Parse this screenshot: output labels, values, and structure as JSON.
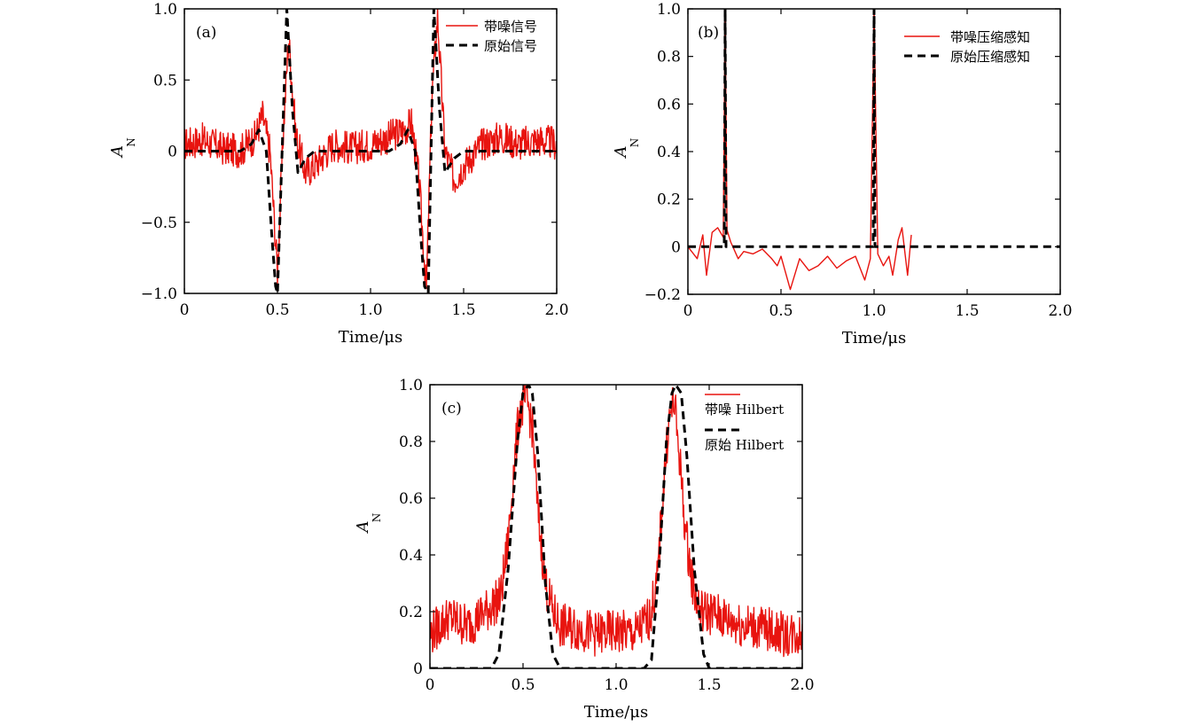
{
  "chart_data": [
    {
      "type": "line",
      "panel_label": "(a)",
      "xlabel": "Time/μs",
      "ylabel": "A",
      "ylabel_sub": "N",
      "xlim": [
        0,
        2.0
      ],
      "ylim": [
        -1.0,
        1.0
      ],
      "xticks": [
        0,
        0.5,
        1.0,
        1.5,
        2.0
      ],
      "xtick_labels": [
        "0",
        "0.5",
        "1.0",
        "1.5",
        "2.0"
      ],
      "yticks": [
        -1.0,
        -0.5,
        0,
        0.5,
        1.0
      ],
      "ytick_labels": [
        "−1.0",
        "−0.5",
        "0",
        "0.5",
        "1.0"
      ],
      "legend_position": "top-right",
      "series": [
        {
          "name": "带噪信号",
          "color": "#e8140f",
          "style": "solid",
          "x": [
            0,
            0.1,
            0.2,
            0.3,
            0.38,
            0.42,
            0.46,
            0.5,
            0.53,
            0.56,
            0.6,
            0.65,
            0.7,
            0.8,
            0.9,
            1.0,
            1.1,
            1.18,
            1.22,
            1.26,
            1.3,
            1.33,
            1.36,
            1.4,
            1.45,
            1.5,
            1.6,
            1.7,
            1.8,
            1.9,
            2.0
          ],
          "y": [
            0.05,
            0.08,
            0.02,
            0.0,
            0.1,
            0.25,
            0.0,
            -0.85,
            0.1,
            0.8,
            0.1,
            -0.15,
            -0.1,
            0.05,
            0.02,
            0.05,
            0.1,
            0.15,
            0.2,
            -0.2,
            -0.97,
            0.4,
            0.95,
            0.0,
            -0.2,
            -0.1,
            0.05,
            0.1,
            0.05,
            0.08,
            0.05
          ],
          "noise_amplitude": 0.12
        },
        {
          "name": "原始信号",
          "color": "#000000",
          "style": "dashed",
          "x": [
            0,
            0.1,
            0.2,
            0.3,
            0.36,
            0.4,
            0.44,
            0.47,
            0.49,
            0.5,
            0.52,
            0.55,
            0.58,
            0.61,
            0.65,
            0.7,
            0.8,
            0.9,
            1.0,
            1.1,
            1.16,
            1.2,
            1.24,
            1.27,
            1.29,
            1.31,
            1.34,
            1.37,
            1.4,
            1.45,
            1.5,
            1.6,
            1.7,
            1.8,
            1.9,
            2.0
          ],
          "y": [
            0,
            0,
            0,
            0,
            0.05,
            0.15,
            0.0,
            -0.6,
            -0.95,
            -1.0,
            -0.2,
            1.0,
            0.3,
            -0.15,
            -0.05,
            0,
            0,
            0,
            0,
            0,
            0.05,
            0.15,
            0.0,
            -0.6,
            -0.95,
            -1.0,
            1.0,
            0.3,
            -0.15,
            -0.05,
            0,
            0,
            0,
            0,
            0,
            0
          ]
        }
      ]
    },
    {
      "type": "line",
      "panel_label": "(b)",
      "xlabel": "Time/μs",
      "ylabel": "A",
      "ylabel_sub": "N",
      "xlim": [
        0,
        2.0
      ],
      "ylim": [
        -0.2,
        1.0
      ],
      "xticks": [
        0,
        0.5,
        1.0,
        1.5,
        2.0
      ],
      "xtick_labels": [
        "0",
        "0.5",
        "1.0",
        "1.5",
        "2.0"
      ],
      "yticks": [
        -0.2,
        0,
        0.2,
        0.4,
        0.6,
        0.8,
        1.0
      ],
      "ytick_labels": [
        "−0.2",
        "0",
        "0.2",
        "0.4",
        "0.6",
        "0.8",
        "1.0"
      ],
      "legend_position": "top-right",
      "series": [
        {
          "name": "带噪压缩感知",
          "color": "#e8140f",
          "style": "solid",
          "x": [
            0,
            0.02,
            0.05,
            0.08,
            0.1,
            0.13,
            0.16,
            0.19,
            0.2,
            0.21,
            0.23,
            0.27,
            0.3,
            0.35,
            0.4,
            0.45,
            0.48,
            0.5,
            0.55,
            0.6,
            0.65,
            0.7,
            0.75,
            0.8,
            0.85,
            0.9,
            0.95,
            0.98,
            1.0,
            1.02,
            1.05,
            1.08,
            1.1,
            1.13,
            1.15,
            1.18,
            1.2
          ],
          "y": [
            0.0,
            -0.02,
            -0.05,
            0.05,
            -0.12,
            0.06,
            0.08,
            0.04,
            1.0,
            0.07,
            0.02,
            -0.05,
            -0.02,
            -0.03,
            -0.01,
            -0.05,
            -0.08,
            -0.04,
            -0.18,
            -0.05,
            -0.1,
            -0.08,
            -0.04,
            -0.09,
            -0.06,
            -0.04,
            -0.14,
            -0.05,
            1.0,
            -0.03,
            -0.08,
            -0.04,
            -0.12,
            0.03,
            0.08,
            -0.12,
            0.05
          ]
        },
        {
          "name": "原始压缩感知",
          "color": "#000000",
          "style": "dashed",
          "x": [
            0,
            0.195,
            0.2,
            0.205,
            0.995,
            1.0,
            1.005,
            2.0
          ],
          "y": [
            0,
            0,
            1.0,
            0,
            0,
            1.0,
            0,
            0
          ]
        }
      ]
    },
    {
      "type": "line",
      "panel_label": "(c)",
      "xlabel": "Time/μs",
      "ylabel": "A",
      "ylabel_sub": "N",
      "xlim": [
        0,
        2.0
      ],
      "ylim": [
        0,
        1.0
      ],
      "xticks": [
        0,
        0.5,
        1.0,
        1.5,
        2.0
      ],
      "xtick_labels": [
        "0",
        "0.5",
        "1.0",
        "1.5",
        "2.0"
      ],
      "yticks": [
        0,
        0.2,
        0.4,
        0.6,
        0.8,
        1.0
      ],
      "ytick_labels": [
        "0",
        "0.2",
        "0.4",
        "0.6",
        "0.8",
        "1.0"
      ],
      "legend_position": "top-right",
      "series": [
        {
          "name": "带噪 Hilbert",
          "color": "#e8140f",
          "style": "solid",
          "x": [
            0,
            0.1,
            0.2,
            0.3,
            0.38,
            0.42,
            0.45,
            0.48,
            0.52,
            0.55,
            0.58,
            0.62,
            0.66,
            0.7,
            0.8,
            0.9,
            1.0,
            1.1,
            1.18,
            1.22,
            1.25,
            1.28,
            1.31,
            1.34,
            1.37,
            1.41,
            1.45,
            1.5,
            1.6,
            1.7,
            1.8,
            1.9,
            2.0
          ],
          "y": [
            0.12,
            0.18,
            0.15,
            0.2,
            0.25,
            0.45,
            0.7,
            0.9,
            0.95,
            0.85,
            0.55,
            0.3,
            0.2,
            0.15,
            0.14,
            0.12,
            0.13,
            0.12,
            0.18,
            0.3,
            0.6,
            0.85,
            0.95,
            0.75,
            0.5,
            0.3,
            0.2,
            0.2,
            0.17,
            0.15,
            0.14,
            0.12,
            0.12
          ],
          "noise_amplitude": 0.08
        },
        {
          "name": "原始 Hilbert",
          "color": "#000000",
          "style": "dashed",
          "x": [
            0,
            0.33,
            0.37,
            0.42,
            0.47,
            0.5,
            0.53,
            0.55,
            0.58,
            0.62,
            0.66,
            0.7,
            1.15,
            1.19,
            1.23,
            1.27,
            1.3,
            1.32,
            1.35,
            1.38,
            1.42,
            1.47,
            1.5,
            2.0
          ],
          "y": [
            0,
            0,
            0.05,
            0.35,
            0.8,
            0.97,
            1.0,
            0.97,
            0.75,
            0.3,
            0.05,
            0,
            0,
            0.03,
            0.35,
            0.8,
            0.97,
            1.0,
            0.97,
            0.75,
            0.35,
            0.05,
            0,
            0
          ]
        }
      ]
    }
  ]
}
